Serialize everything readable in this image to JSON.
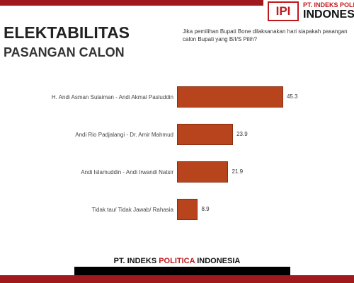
{
  "chart_data": {
    "type": "bar",
    "orientation": "horizontal",
    "logo_text": [
      "PT. INDEKS POLI",
      "INDONES"
    ],
    "title": "ELEKTABILITAS",
    "subtitle": "PASANGAN CALON",
    "question": "Jika pemilihan Bupati Bone dilaksanakan hari siapakah pasangan calon Bupati yang B/I/S Pilih?",
    "categories": [
      "H. Andi Asman Sulaiman - Andi Akmal Pasluddin",
      "Andi Rio Padjalangi - Dr. Amir Mahmud",
      "Andi Islamuddin - Andi Irwandi Natsir",
      "Tidak tau/ Tidak Jawab/ Rahasia"
    ],
    "values": [
      45.3,
      23.9,
      21.9,
      8.9
    ],
    "color": "#b8441e",
    "footer": [
      "PT. INDEKS ",
      "POLITICA",
      " INDONESIA"
    ]
  }
}
